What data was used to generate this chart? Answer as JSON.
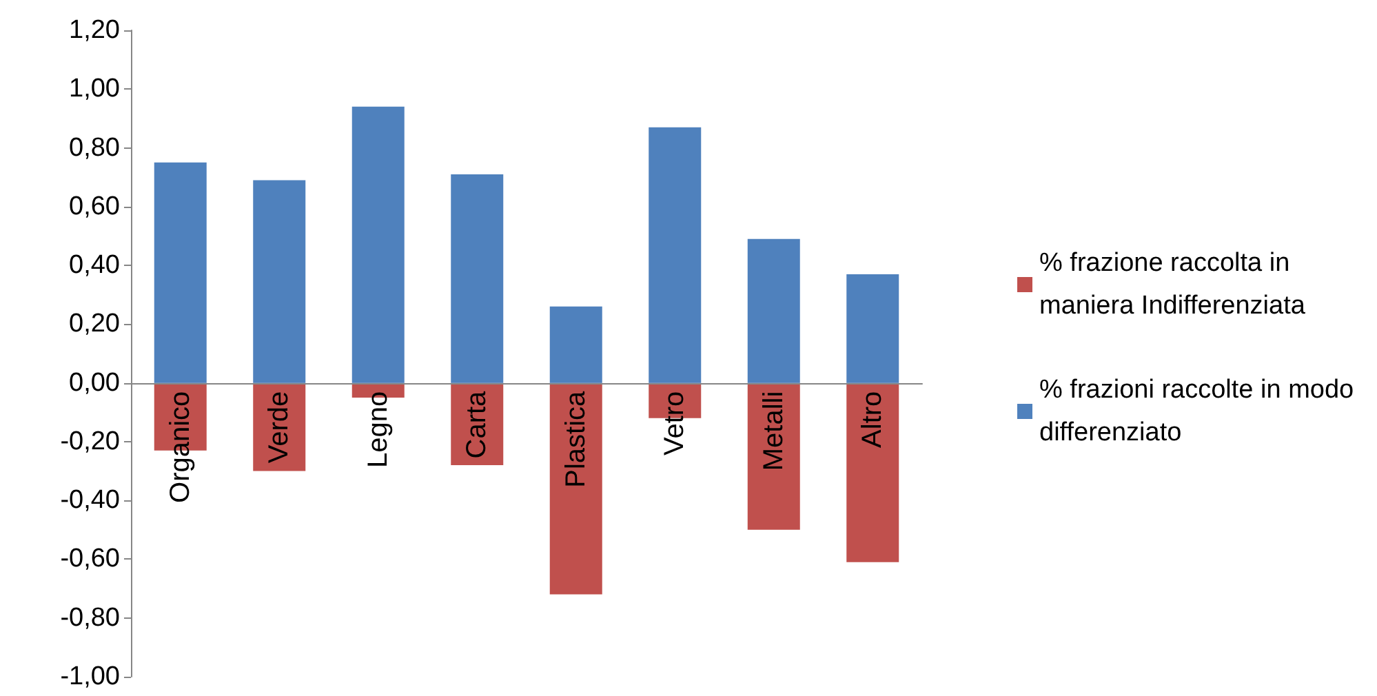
{
  "chart_data": {
    "type": "bar",
    "stacked": true,
    "categories": [
      "Organico",
      "Verde",
      "Legno",
      "Carta",
      "Plastica",
      "Vetro",
      "Metalli",
      "Altro"
    ],
    "series": [
      {
        "name": "% frazione raccolta in maniera Indifferenziata",
        "color": "#c0504d",
        "values": [
          -0.23,
          -0.3,
          -0.05,
          -0.28,
          -0.72,
          -0.12,
          -0.5,
          -0.61
        ]
      },
      {
        "name": "% frazioni raccolte in modo differenziato",
        "color": "#4f81bd",
        "values": [
          0.75,
          0.69,
          0.94,
          0.71,
          0.26,
          0.87,
          0.49,
          0.37
        ]
      }
    ],
    "ylim": [
      -1,
      1.2
    ],
    "yticks": [
      {
        "value": -1,
        "label": "-1,00"
      },
      {
        "value": -0.8,
        "label": "-0,80"
      },
      {
        "value": -0.6,
        "label": "-0,60"
      },
      {
        "value": -0.4,
        "label": "-0,40"
      },
      {
        "value": -0.2,
        "label": "-0,20"
      },
      {
        "value": 0,
        "label": "0,00"
      },
      {
        "value": 0.2,
        "label": "0,20"
      },
      {
        "value": 0.4,
        "label": "0,40"
      },
      {
        "value": 0.6,
        "label": "0,60"
      },
      {
        "value": 0.8,
        "label": "0,80"
      },
      {
        "value": 1,
        "label": "1,00"
      },
      {
        "value": 1.2,
        "label": "1,20"
      }
    ],
    "grid": false,
    "legend": "right"
  }
}
